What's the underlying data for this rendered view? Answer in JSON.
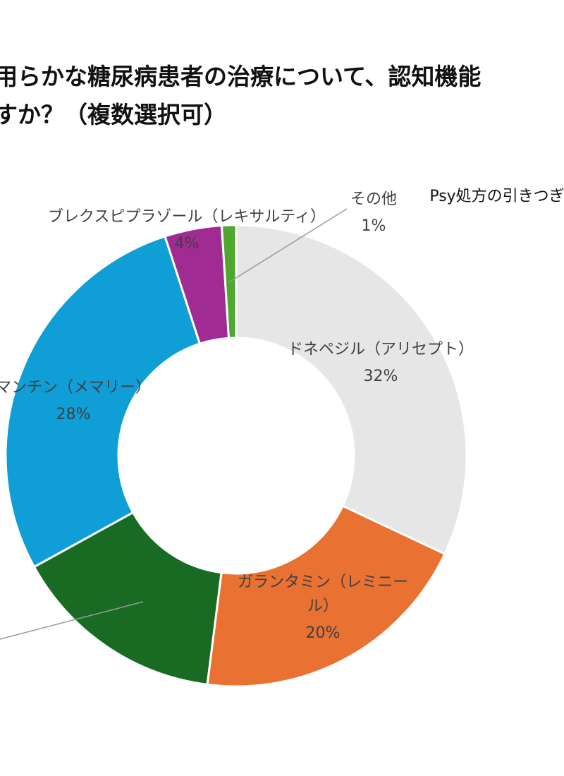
{
  "chart_data": {
    "type": "pie",
    "title_lines": [
      "用らかな糖尿病患者の治療について、認知機能",
      "すか？（複数選択可）"
    ],
    "slices": [
      {
        "label": "ドネペジル（アリセプト）",
        "label_lines": [
          "ドネペジル（アリセプト）"
        ],
        "value": 32,
        "value_label": "32%",
        "color": "#e6e6e6"
      },
      {
        "label": "ガランタミン（レミニール）",
        "label_lines": [
          "ガランタミン（レミニー",
          "ル）"
        ],
        "value": 20,
        "value_label": "20%",
        "color": "#e97131"
      },
      {
        "label": "",
        "label_lines": [],
        "value": 15,
        "value_label": "",
        "color": "#196b24"
      },
      {
        "label": "マンチン（メマリー）",
        "label_lines": [
          "マンチン（メマリー）"
        ],
        "value": 28,
        "value_label": "28%",
        "color": "#0f9ed5"
      },
      {
        "label": "ブレクスピプラゾール（レキサルティ）",
        "label_lines": [
          "ブレクスピプラゾール（レキサルティ）"
        ],
        "value": 4,
        "value_label": "4%",
        "color": "#a02b93"
      },
      {
        "label": "その他",
        "label_lines": [
          "その他"
        ],
        "value": 1,
        "value_label": "1%",
        "color": "#4ea72e"
      }
    ],
    "extra_label": "Psy処方の引きつぎ",
    "legend": "none",
    "hole": "donut"
  }
}
